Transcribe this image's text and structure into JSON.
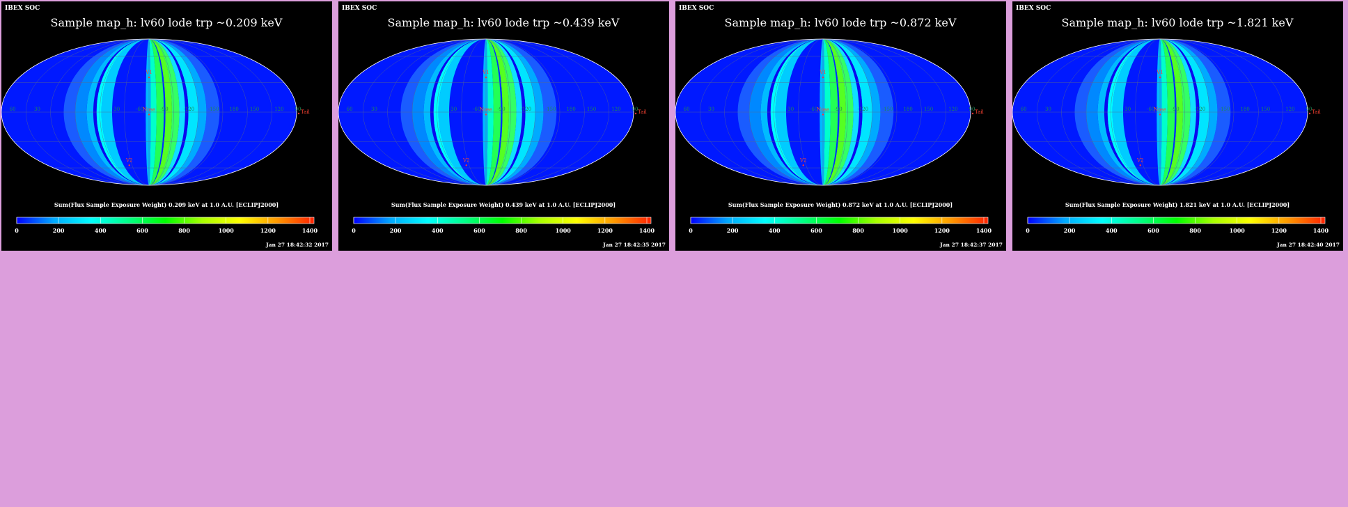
{
  "page": {
    "background": "#dc9edc"
  },
  "panel_labels": {
    "corner_label": "IBEX SOC",
    "colorbar_ticks": [
      "0",
      "200",
      "400",
      "600",
      "800",
      "1000",
      "1200",
      "1400"
    ],
    "grid_lon_labels": [
      "60",
      "30",
      "-30",
      "-60",
      "-90",
      "-120",
      "-150",
      "180",
      "150",
      "120",
      "90"
    ],
    "markers": [
      "V1",
      "Nose",
      "Tail",
      "V2"
    ]
  },
  "panels": [
    {
      "title": "Sample map_h: lv60 lode trp ~0.209 keV",
      "colorbar_label": "Sum(Flux Sample Exposure Weight) 0.209 keV at 1.0 A.U. [ECLIPJ2000]",
      "timestamp": "Jan 27 18:42:32 2017"
    },
    {
      "title": "Sample map_h: lv60 lode trp ~0.439 keV",
      "colorbar_label": "Sum(Flux Sample Exposure Weight) 0.439 keV at 1.0 A.U. [ECLIPJ2000]",
      "timestamp": "Jan 27 18:42:35 2017"
    },
    {
      "title": "Sample map_h: lv60 lode trp ~0.872 keV",
      "colorbar_label": "Sum(Flux Sample Exposure Weight) 0.872 keV at 1.0 A.U. [ECLIPJ2000]",
      "timestamp": "Jan 27 18:42:37 2017"
    },
    {
      "title": "Sample map_h: lv60 lode trp ~1.821 keV",
      "colorbar_label": "Sum(Flux Sample Exposure Weight) 1.821 keV at 1.0 A.U. [ECLIPJ2000]",
      "timestamp": "Jan 27 18:42:40 2017"
    }
  ],
  "chart_data": {
    "type": "heatmap",
    "projection": "mollweide",
    "colormap": [
      "#0000ff",
      "#00aaff",
      "#00ffff",
      "#00ff88",
      "#00ff00",
      "#aaff00",
      "#ffff00",
      "#ff9900",
      "#ff2200"
    ],
    "colorbar_range": [
      0,
      1400
    ],
    "background_value_color": "#0019ff",
    "swath_bands": [
      {
        "lon_from": 86,
        "lon_to": 70,
        "color": "#1a5cff"
      },
      {
        "lon_from": 70,
        "lon_to": 60,
        "color": "#00aaff"
      },
      {
        "lon_from": 60,
        "lon_to": 48,
        "color": "#00e5ff"
      },
      {
        "lon_from": 48,
        "lon_to": 44,
        "color": "#0a0aee"
      },
      {
        "lon_from": 44,
        "lon_to": 37,
        "color": "#10e0ff"
      },
      {
        "lon_from": 37,
        "lon_to": 28,
        "color": "#33ff66"
      },
      {
        "lon_from": 28,
        "lon_to": 20,
        "color": "#55ff22"
      },
      {
        "lon_from": 20,
        "lon_to": 18,
        "color": "#0030ff"
      },
      {
        "lon_from": 18,
        "lon_to": 9,
        "color": "#22ff55"
      },
      {
        "lon_from": 9,
        "lon_to": 2,
        "color": "#00ffcc"
      },
      {
        "lon_from": 2,
        "lon_to": -4,
        "color": "#00b8ff"
      },
      {
        "lon_from": -45,
        "lon_to": -58,
        "color": "#00ccff"
      },
      {
        "lon_from": -58,
        "lon_to": -64,
        "color": "#00ffff"
      },
      {
        "lon_from": -64,
        "lon_to": -68,
        "color": "#0a0aee"
      },
      {
        "lon_from": -68,
        "lon_to": -76,
        "color": "#00bbff"
      },
      {
        "lon_from": -76,
        "lon_to": -90,
        "color": "#0088ff"
      },
      {
        "lon_from": -90,
        "lon_to": -104,
        "color": "#1a5cff"
      }
    ]
  }
}
